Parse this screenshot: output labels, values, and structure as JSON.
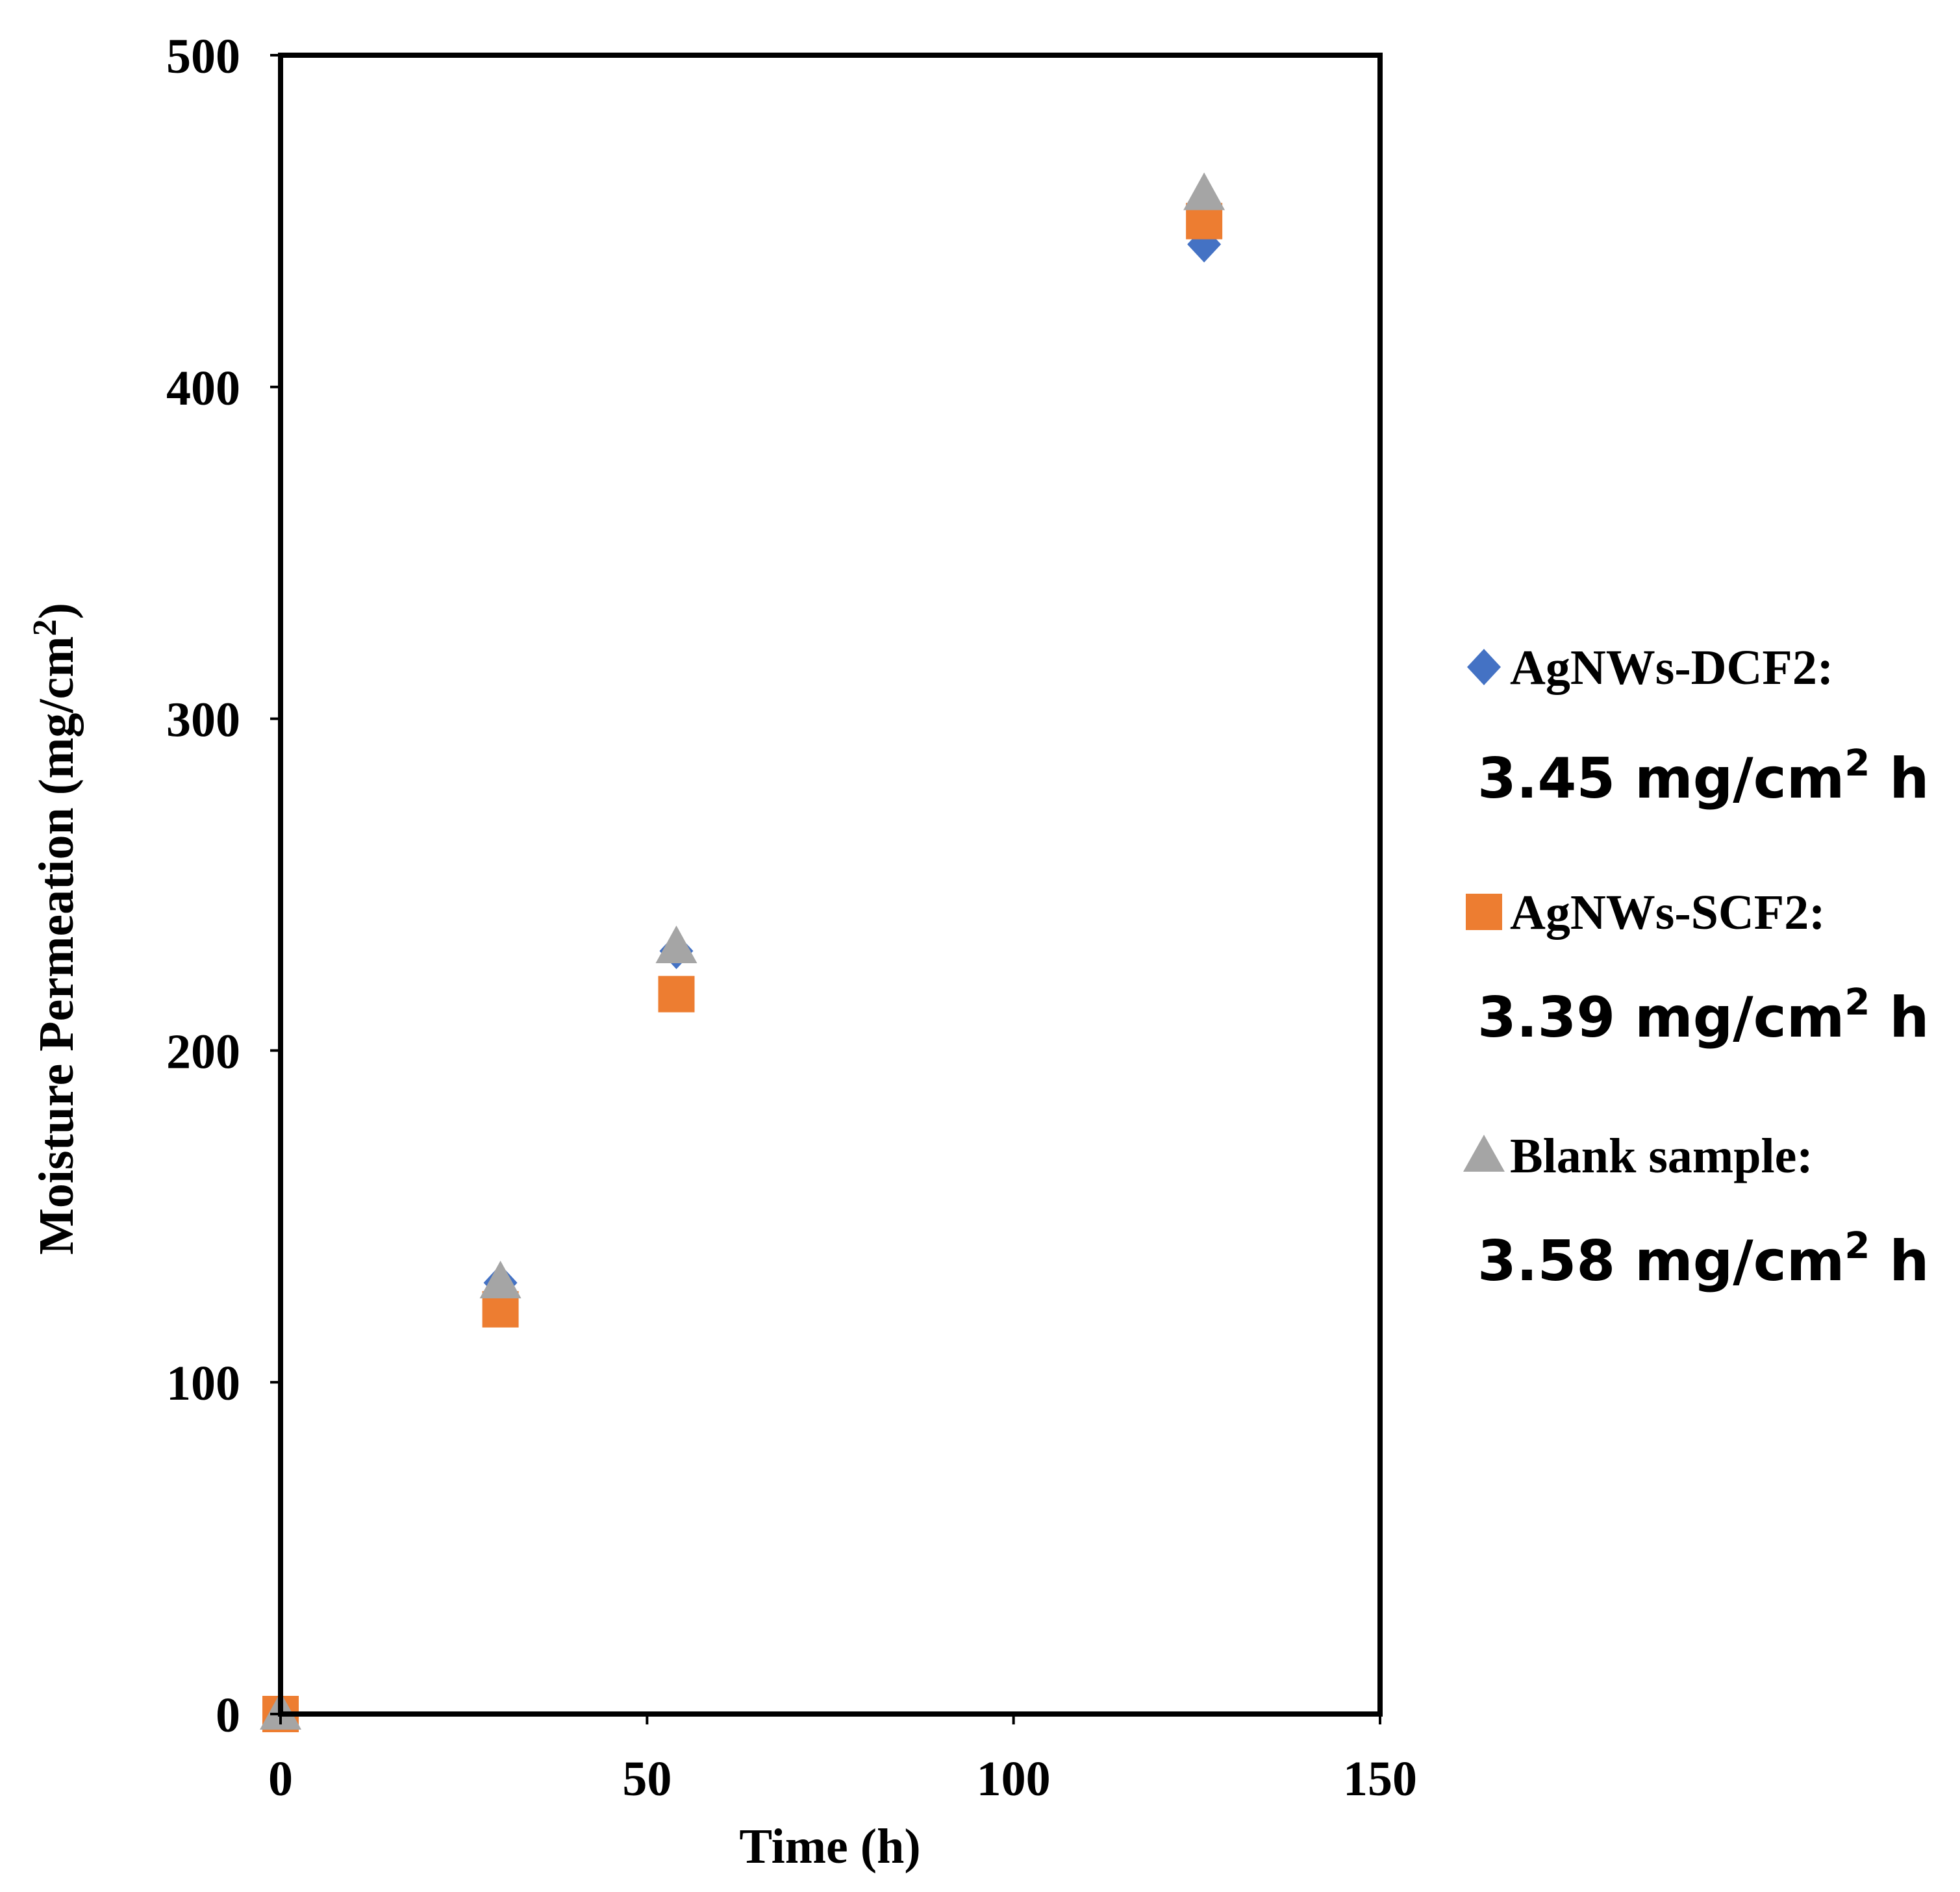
{
  "chart_data": {
    "type": "scatter",
    "title": "",
    "xlabel": "Time (h)",
    "ylabel": {
      "base": "Moisture Permeation (mg/cm",
      "sup": "2",
      "end": ")"
    },
    "xlim": [
      0,
      150
    ],
    "ylim": [
      0,
      500
    ],
    "xticks": [
      "0",
      "50",
      "100",
      "150"
    ],
    "yticks": [
      "0",
      "100",
      "200",
      "300",
      "400",
      "500"
    ],
    "xtick_values": [
      0,
      50,
      100,
      150
    ],
    "ytick_values": [
      0,
      100,
      200,
      300,
      400,
      500
    ],
    "grid": false,
    "legend_position": "right",
    "series": [
      {
        "name": "AgNWs-DCF2:",
        "rate": {
          "value": "3.45 mg/cm",
          "sup": "2",
          "unit": " h"
        },
        "marker": "diamond",
        "color": "#4472C4",
        "x": [
          0,
          30,
          54,
          126
        ],
        "y": [
          0,
          130,
          230,
          443
        ]
      },
      {
        "name": "AgNWs-SCF2:",
        "rate": {
          "value": "3.39 mg/cm",
          "sup": "2",
          "unit": " h"
        },
        "marker": "square",
        "color": "#ED7D31",
        "x": [
          0,
          30,
          54,
          126
        ],
        "y": [
          0,
          122,
          217,
          450
        ]
      },
      {
        "name": "Blank sample:",
        "rate": {
          "value": "3.58 mg/cm",
          "sup": "2",
          "unit": " h"
        },
        "marker": "triangle",
        "color": "#A5A5A5",
        "x": [
          0,
          30,
          54,
          126
        ],
        "y": [
          0,
          130,
          231,
          458
        ]
      }
    ]
  }
}
